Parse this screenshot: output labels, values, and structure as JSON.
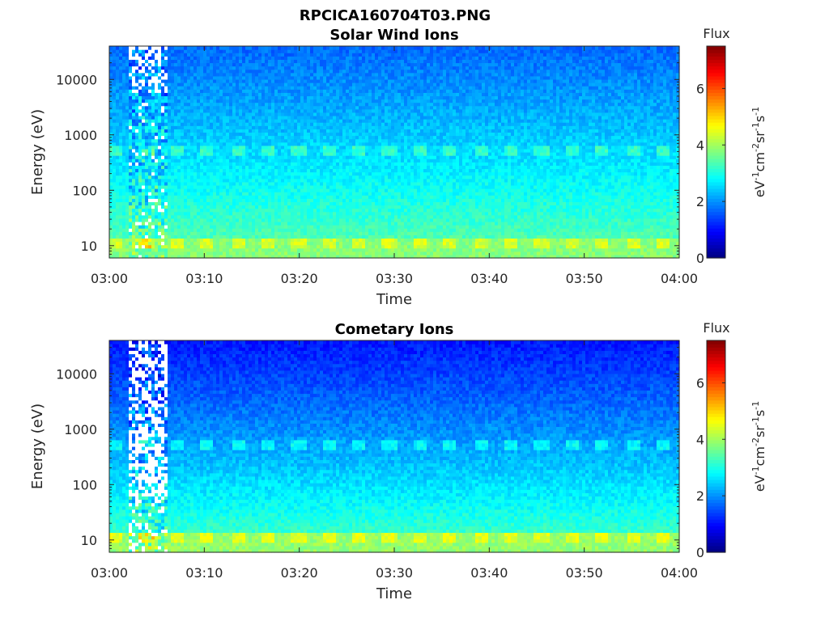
{
  "figure": {
    "title": "RPCICA160704T03.PNG"
  },
  "chart_data": [
    {
      "type": "heatmap",
      "title": "Solar Wind Ions",
      "xlabel": "Time",
      "ylabel": "Energy (eV)",
      "x_range": [
        "03:00",
        "04:00"
      ],
      "x_ticks": [
        "03:00",
        "03:10",
        "03:20",
        "03:30",
        "03:40",
        "03:50",
        "04:00"
      ],
      "y_scale": "log",
      "y_range": [
        6,
        40000
      ],
      "y_ticks": [
        "10",
        "100",
        "1000",
        "10000"
      ],
      "colorbar": {
        "title": "Flux",
        "label": "eV-1cm-2sr-1s-1",
        "colormap": "jet",
        "range": [
          0,
          7.5
        ],
        "ticks": [
          "0",
          "2",
          "4",
          "6"
        ]
      },
      "features": {
        "background_flux_high_energy": 1.7,
        "background_flux_low_energy": 3.7,
        "sweep_band_energy_eV": 550,
        "sweep_band_flux": 3.0,
        "low_energy_band_eV": 11,
        "low_energy_band_flux": 4.1,
        "band_period_min": 3.2,
        "noisy_interval": [
          "03:02",
          "03:06"
        ]
      }
    },
    {
      "type": "heatmap",
      "title": "Cometary Ions",
      "xlabel": "Time",
      "ylabel": "Energy (eV)",
      "x_range": [
        "03:00",
        "04:00"
      ],
      "x_ticks": [
        "03:00",
        "03:10",
        "03:20",
        "03:30",
        "03:40",
        "03:50",
        "04:00"
      ],
      "y_scale": "log",
      "y_range": [
        6,
        40000
      ],
      "y_ticks": [
        "10",
        "100",
        "1000",
        "10000"
      ],
      "colorbar": {
        "title": "Flux",
        "label": "eV-1cm-2sr-1s-1",
        "colormap": "jet",
        "range": [
          0,
          7.5
        ],
        "ticks": [
          "0",
          "2",
          "4",
          "6"
        ]
      },
      "features": {
        "background_flux_high_energy": 1.1,
        "background_flux_low_energy": 3.6,
        "sweep_band_energy_eV": 550,
        "sweep_band_flux": 2.6,
        "low_energy_band_eV": 11,
        "low_energy_band_flux": 4.2,
        "band_period_min": 3.2,
        "noisy_interval": [
          "03:02",
          "03:06"
        ]
      }
    }
  ]
}
